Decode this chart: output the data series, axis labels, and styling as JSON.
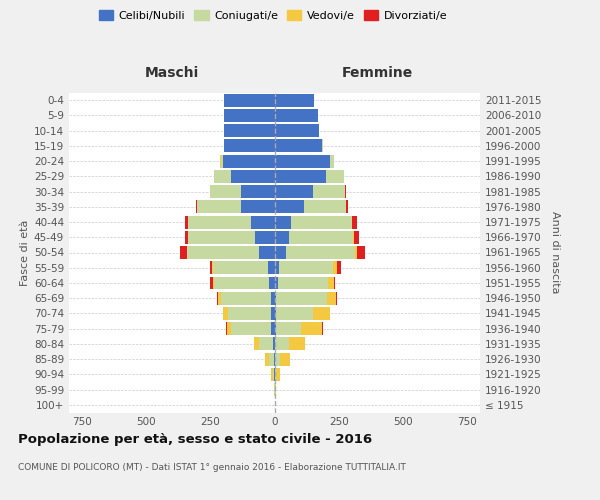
{
  "age_groups": [
    "100+",
    "95-99",
    "90-94",
    "85-89",
    "80-84",
    "75-79",
    "70-74",
    "65-69",
    "60-64",
    "55-59",
    "50-54",
    "45-49",
    "40-44",
    "35-39",
    "30-34",
    "25-29",
    "20-24",
    "15-19",
    "10-14",
    "5-9",
    "0-4"
  ],
  "birth_years": [
    "≤ 1915",
    "1916-1920",
    "1921-1925",
    "1926-1930",
    "1931-1935",
    "1936-1940",
    "1941-1945",
    "1946-1950",
    "1951-1955",
    "1956-1960",
    "1961-1965",
    "1966-1970",
    "1971-1975",
    "1976-1980",
    "1981-1985",
    "1986-1990",
    "1991-1995",
    "1996-2000",
    "2001-2005",
    "2006-2010",
    "2011-2015"
  ],
  "colors": {
    "celibe": "#4472C4",
    "coniugato": "#c5d9a0",
    "vedovo": "#f5c842",
    "divorziato": "#e02020"
  },
  "male": {
    "celibe": [
      0,
      0,
      2,
      3,
      5,
      15,
      15,
      15,
      20,
      25,
      60,
      75,
      90,
      130,
      130,
      170,
      200,
      195,
      195,
      195,
      195
    ],
    "coniugato": [
      0,
      2,
      5,
      20,
      55,
      155,
      165,
      195,
      215,
      215,
      280,
      260,
      245,
      170,
      120,
      65,
      10,
      2,
      0,
      0,
      0
    ],
    "vedovo": [
      0,
      0,
      5,
      15,
      20,
      15,
      20,
      10,
      5,
      3,
      2,
      0,
      0,
      0,
      0,
      2,
      2,
      0,
      0,
      0,
      0
    ],
    "divorziato": [
      0,
      0,
      0,
      0,
      0,
      2,
      2,
      3,
      10,
      10,
      25,
      12,
      12,
      5,
      2,
      0,
      0,
      0,
      0,
      0,
      0
    ]
  },
  "female": {
    "nubile": [
      0,
      0,
      0,
      2,
      3,
      5,
      5,
      5,
      12,
      18,
      45,
      55,
      65,
      115,
      150,
      200,
      215,
      185,
      175,
      170,
      155
    ],
    "coniugata": [
      0,
      2,
      5,
      18,
      55,
      100,
      145,
      200,
      195,
      210,
      270,
      250,
      235,
      165,
      125,
      70,
      15,
      2,
      0,
      0,
      0
    ],
    "vedova": [
      0,
      2,
      15,
      40,
      60,
      80,
      65,
      35,
      25,
      15,
      8,
      3,
      2,
      0,
      0,
      0,
      0,
      0,
      0,
      0,
      0
    ],
    "divorziata": [
      0,
      0,
      0,
      0,
      2,
      2,
      2,
      3,
      5,
      15,
      30,
      20,
      20,
      5,
      3,
      2,
      0,
      0,
      0,
      0,
      0
    ]
  },
  "xlim": 800,
  "title": "Popolazione per età, sesso e stato civile - 2016",
  "subtitle": "COMUNE DI POLICORO (MT) - Dati ISTAT 1° gennaio 2016 - Elaborazione TUTTITALIA.IT",
  "ylabel_left": "Fasce di età",
  "ylabel_right": "Anni di nascita",
  "xlabel_left": "Maschi",
  "xlabel_right": "Femmine",
  "bg_color": "#f0f0f0",
  "plot_bg": "#ffffff"
}
